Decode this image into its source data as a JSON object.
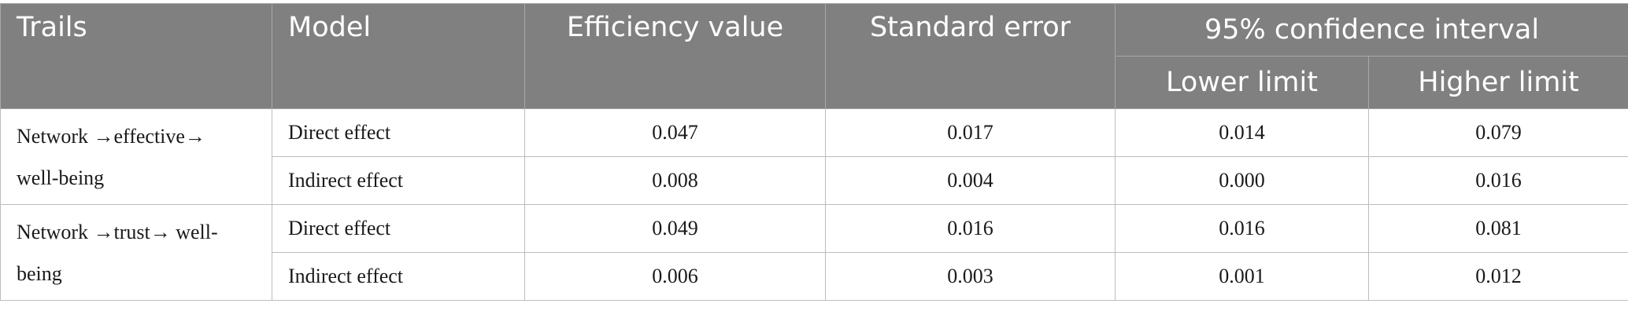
{
  "table": {
    "headers": {
      "trails": "Trails",
      "model": "Model",
      "efficiency_value": "Efficiency value",
      "standard_error": "Standard error",
      "ci_group": "95% confidence interval",
      "lower_limit": "Lower limit",
      "higher_limit": "Higher limit"
    },
    "groups": [
      {
        "trail_line1": "Network →effective→",
        "trail_line2": "well-being",
        "rows": [
          {
            "model": "Direct effect",
            "efficiency": "0.047",
            "se": "0.017",
            "lower": "0.014",
            "higher": "0.079"
          },
          {
            "model": "Indirect effect",
            "efficiency": "0.008",
            "se": "0.004",
            "lower": "0.000",
            "higher": "0.016"
          }
        ]
      },
      {
        "trail_line1": "Network →trust→ well-",
        "trail_line2": "being",
        "rows": [
          {
            "model": "Direct effect",
            "efficiency": "0.049",
            "se": "0.016",
            "lower": "0.016",
            "higher": "0.081"
          },
          {
            "model": "Indirect effect",
            "efficiency": "0.006",
            "se": "0.003",
            "lower": "0.001",
            "higher": "0.012"
          }
        ]
      }
    ]
  }
}
